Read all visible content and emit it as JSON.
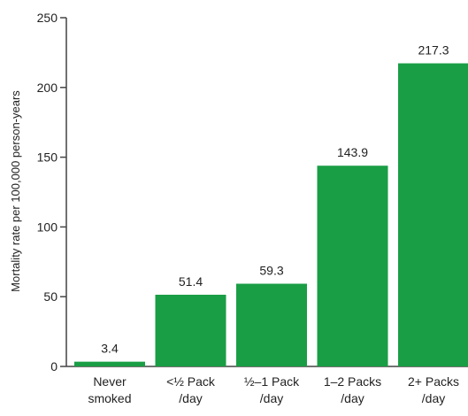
{
  "chart_data": {
    "type": "bar",
    "categories": [
      [
        "Never",
        "smoked"
      ],
      [
        "<½ Pack",
        "/day"
      ],
      [
        "½–1 Pack",
        "/day"
      ],
      [
        "1–2 Packs",
        "/day"
      ],
      [
        "2+ Packs",
        "/day"
      ]
    ],
    "values": [
      3.4,
      51.4,
      59.3,
      143.9,
      217.3
    ],
    "value_labels": [
      "3.4",
      "51.4",
      "59.3",
      "143.9",
      "217.3"
    ],
    "ylabel": "Mortality rate per 100,000 person-years",
    "ylim": [
      0,
      250
    ],
    "yticks": [
      0,
      50,
      100,
      150,
      200,
      250
    ],
    "grid": false,
    "bar_color": "#1a9e45",
    "axis_color": "#444444"
  }
}
